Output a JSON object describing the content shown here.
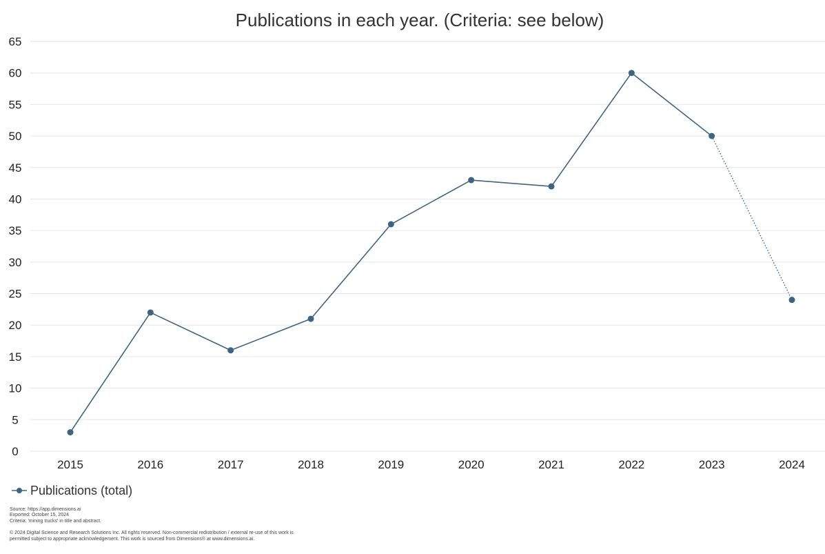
{
  "chart_data": {
    "type": "line",
    "title": "Publications in each year. (Criteria: see below)",
    "xlabel": "",
    "ylabel": "",
    "categories": [
      "2015",
      "2016",
      "2017",
      "2018",
      "2019",
      "2020",
      "2021",
      "2022",
      "2023",
      "2024"
    ],
    "y_ticks": [
      "0",
      "5",
      "10",
      "15",
      "20",
      "25",
      "30",
      "35",
      "40",
      "45",
      "50",
      "55",
      "60",
      "65"
    ],
    "ylim": [
      0,
      65
    ],
    "grid": true,
    "legend_position": "bottom-left",
    "series": [
      {
        "name": "Publications (total)",
        "values": [
          3,
          22,
          16,
          21,
          36,
          43,
          42,
          60,
          50,
          24
        ],
        "color": "#3f6482",
        "dotted_last_segment": true
      }
    ]
  },
  "footer": {
    "source_line": "Source: https://app.dimensions.ai",
    "exported_line": "Exported: October 15, 2024",
    "criteria_line": "Criteria: 'mining trucks' in title and abstract.",
    "copyright_line_1": "© 2024 Digital Science and Research Solutions Inc. All rights reserved. Non-commercial redistribution / external re-use of this work is",
    "copyright_line_2": "permitted subject to appropriate acknowledgement. This work is sourced from Dimensions® at www.dimensions.ai."
  }
}
